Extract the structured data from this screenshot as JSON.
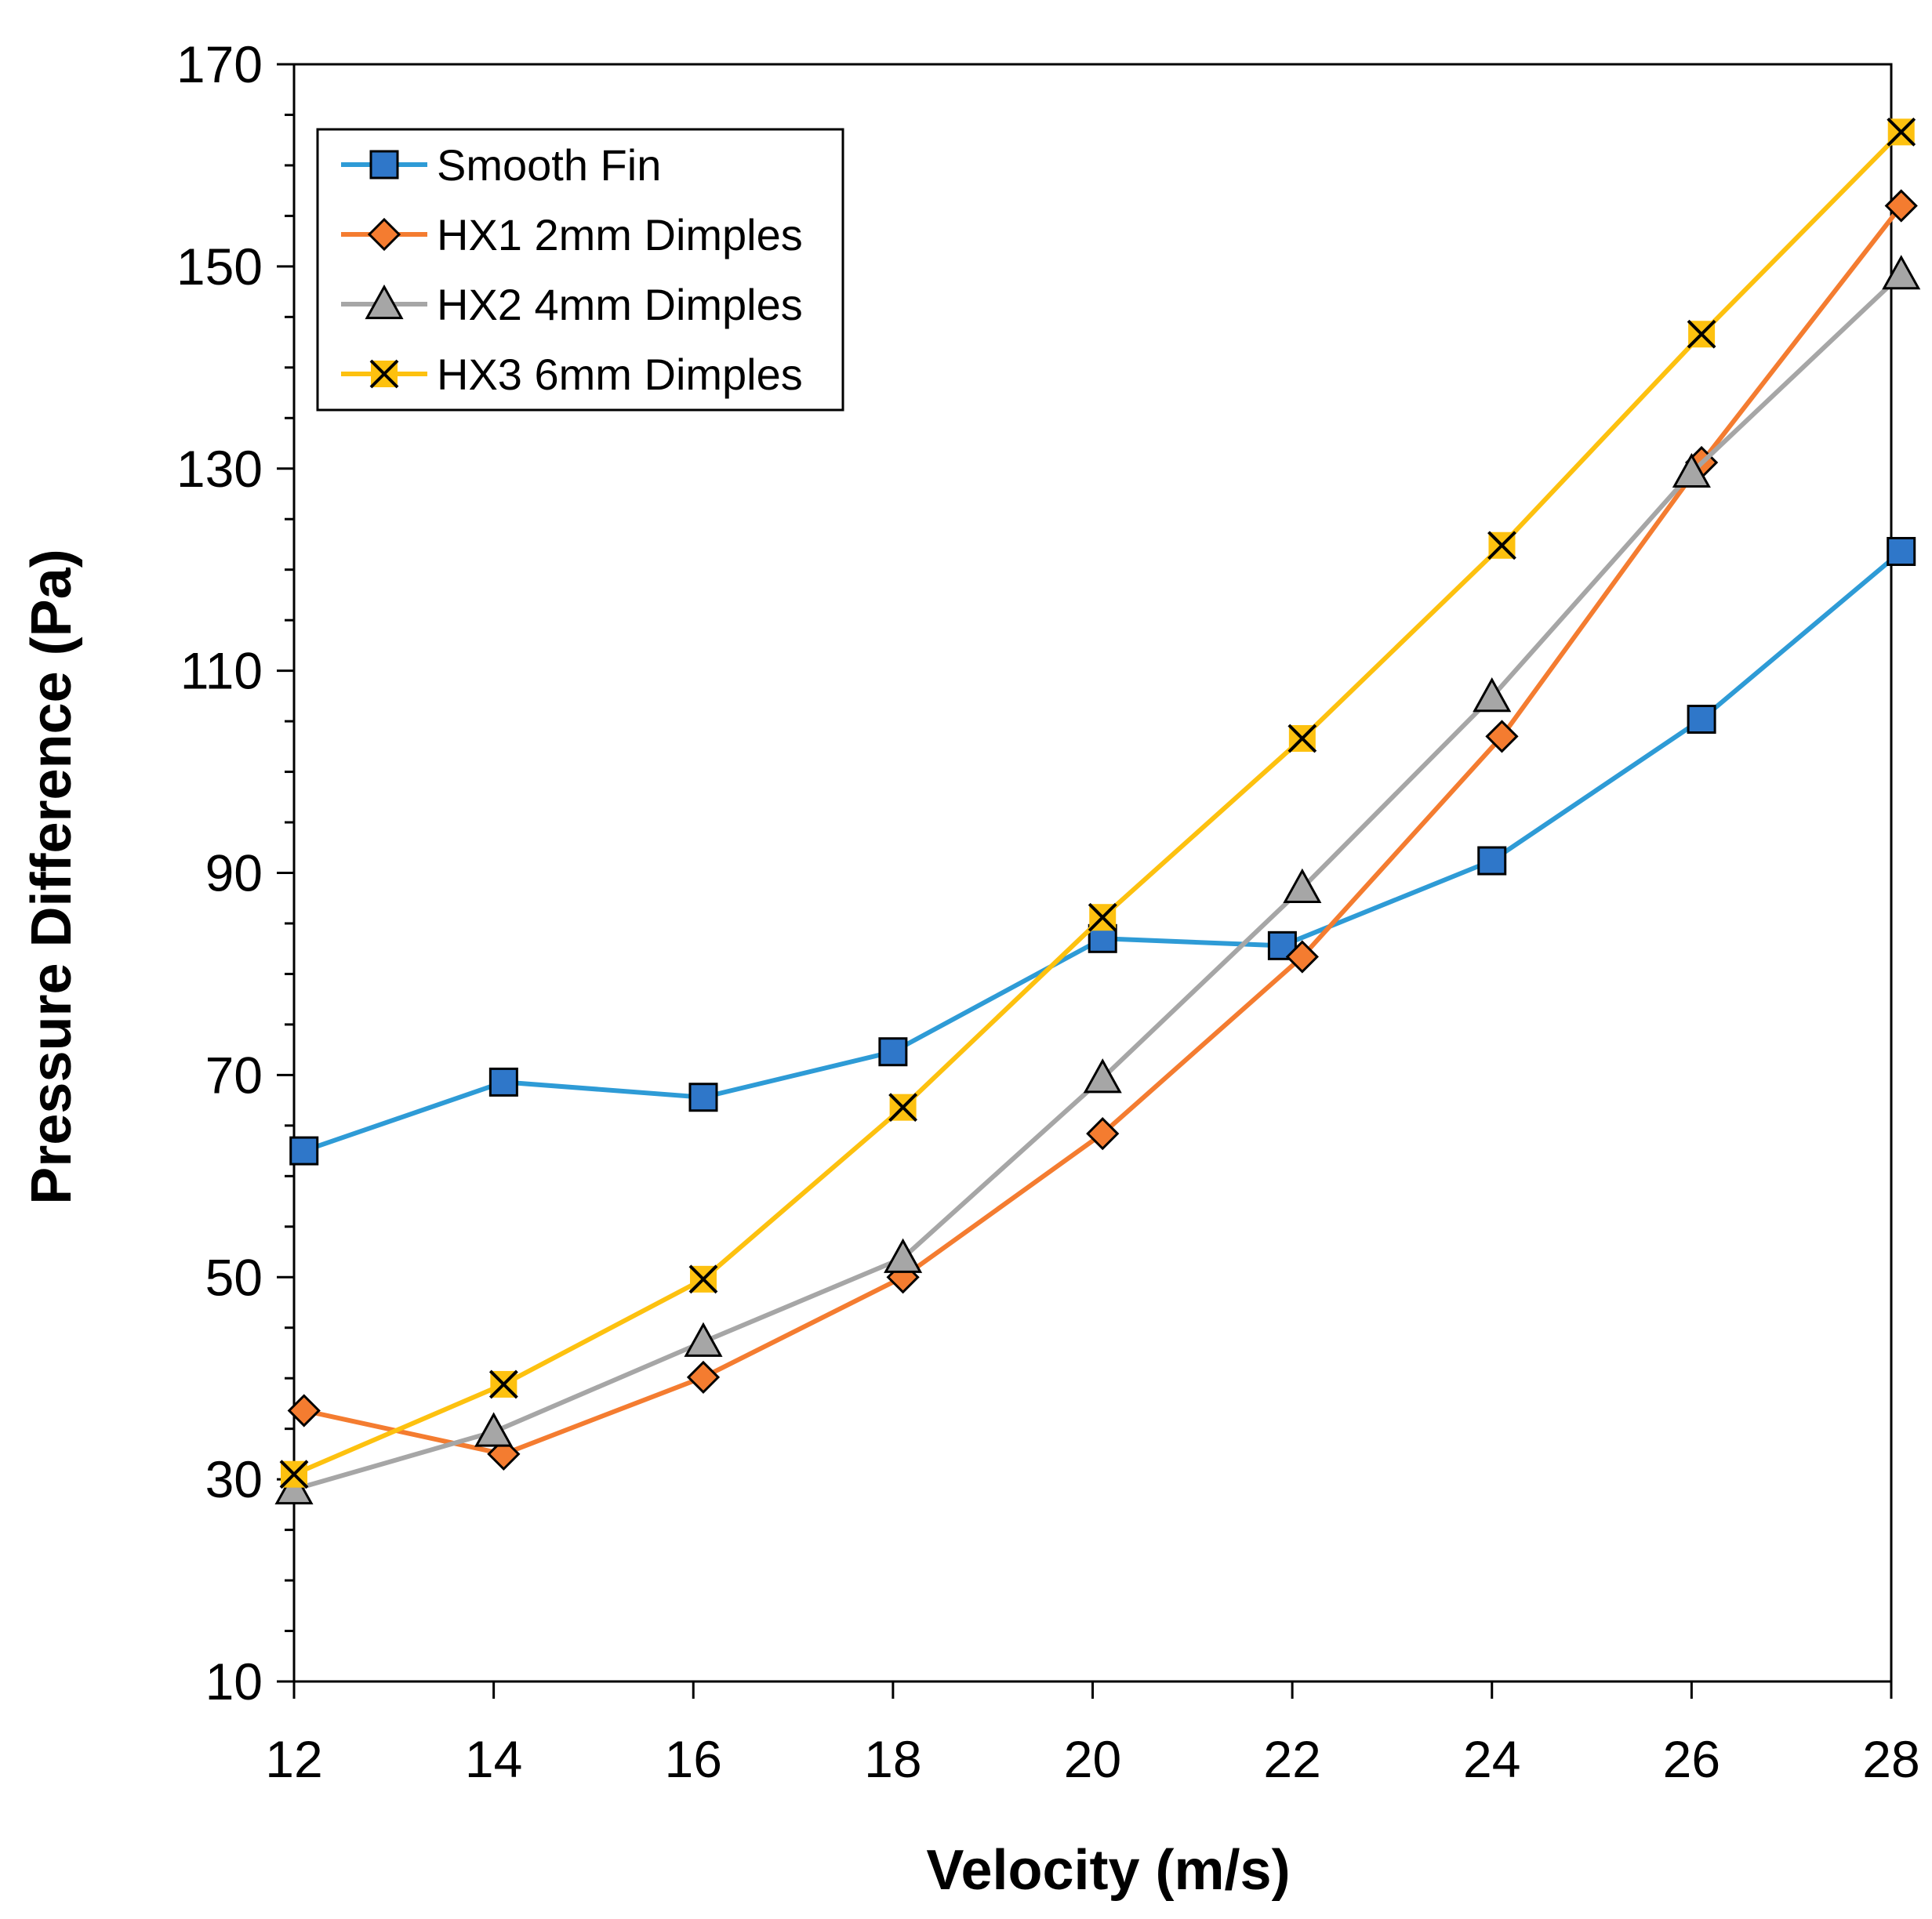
{
  "chart_data": {
    "type": "line",
    "title": "",
    "xlabel": "Velocity (m/s)",
    "ylabel": "Pressure Difference (Pa)",
    "xlim": [
      12,
      28
    ],
    "ylim": [
      10,
      170
    ],
    "xticks": [
      12,
      14,
      16,
      18,
      20,
      22,
      24,
      26,
      28
    ],
    "yticks": [
      10,
      30,
      50,
      70,
      90,
      110,
      130,
      150,
      170
    ],
    "grid": false,
    "legend_position": "top-left",
    "series": [
      {
        "name": "Smooth Fin",
        "color": "#2E9BD6",
        "marker_fill": "#2F77C9",
        "marker": "square",
        "x": [
          12.1,
          14.1,
          16.1,
          18.0,
          20.1,
          21.9,
          24.0,
          26.1,
          28.1
        ],
        "y": [
          62.5,
          69.3,
          67.8,
          72.3,
          83.5,
          82.8,
          91.2,
          105.2,
          121.8
        ]
      },
      {
        "name": "HX1 2mm Dimples",
        "color": "#F47C30",
        "marker_fill": "#F47C30",
        "marker": "diamond",
        "x": [
          12.1,
          14.1,
          16.1,
          18.1,
          20.1,
          22.1,
          24.1,
          26.1,
          28.1
        ],
        "y": [
          36.8,
          32.5,
          40.1,
          50.0,
          64.2,
          81.7,
          103.5,
          130.6,
          156.0
        ]
      },
      {
        "name": "HX2 4mm Dimples",
        "color": "#A6A6A6",
        "marker_fill": "#A6A6A6",
        "marker": "triangle",
        "x": [
          12.0,
          14.0,
          16.1,
          18.1,
          20.1,
          22.1,
          24.0,
          26.0,
          28.1
        ],
        "y": [
          29.0,
          34.7,
          43.6,
          51.9,
          69.7,
          88.5,
          107.4,
          129.6,
          149.2
        ]
      },
      {
        "name": "HX3 6mm Dimples",
        "color": "#FDC10F",
        "marker_fill": "#FDC10F",
        "marker": "x-box",
        "x": [
          12.0,
          14.1,
          16.1,
          18.1,
          20.1,
          22.1,
          24.1,
          26.1,
          28.1
        ],
        "y": [
          30.5,
          39.4,
          49.8,
          66.8,
          85.6,
          103.3,
          122.4,
          143.3,
          163.3
        ]
      }
    ]
  }
}
